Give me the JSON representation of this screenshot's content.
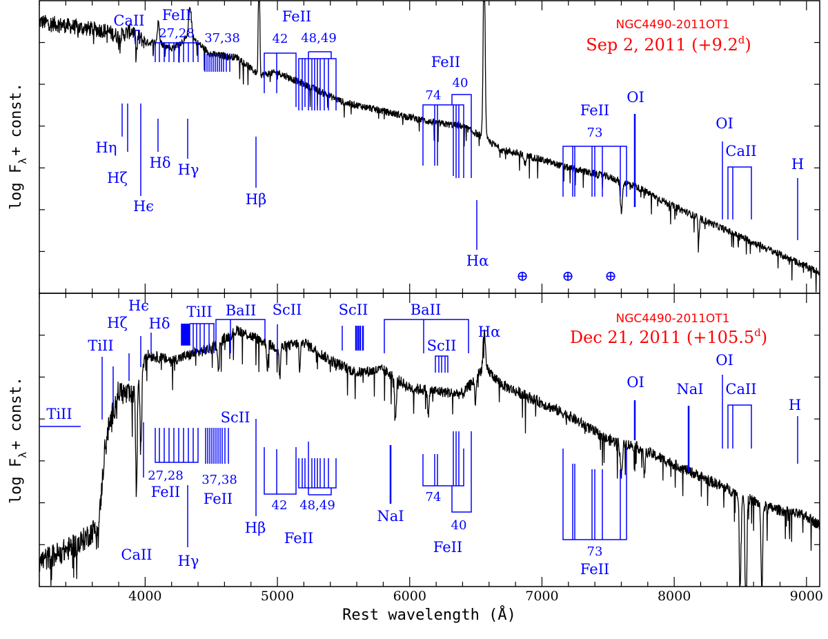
{
  "chart_data": [
    {
      "type": "line",
      "panel": "top",
      "object": "NGC4490-2011OT1",
      "title": "Sep 2, 2011 (+9.2d)",
      "epoch_phase": "+9.2",
      "ylabel": "log Fλ + const.",
      "xlim": [
        3200,
        9100
      ],
      "series": [
        {
          "name": "spectrum",
          "x": [
            3200,
            3500,
            3700,
            3800,
            3900,
            4000,
            4101,
            4200,
            4340,
            4500,
            4700,
            4861,
            5000,
            5200,
            5500,
            5800,
            6000,
            6200,
            6400,
            6563,
            6700,
            6900,
            7200,
            7500,
            7700,
            8000,
            8300,
            8500,
            8700,
            9000,
            9100
          ],
          "y": [
            2.65,
            2.55,
            2.5,
            2.4,
            2.5,
            2.3,
            2.3,
            2.2,
            2.4,
            2.1,
            2.05,
            1.75,
            1.8,
            1.6,
            1.3,
            1.15,
            1.05,
            0.95,
            0.9,
            0.7,
            0.5,
            0.4,
            0.2,
            0.05,
            -0.1,
            -0.45,
            -0.75,
            -0.95,
            -1.15,
            -1.45,
            -1.55
          ]
        }
      ],
      "emission_lines": [
        {
          "name": "Hβ",
          "wavelength": 4861,
          "peak": 3.9
        },
        {
          "name": "Hα",
          "wavelength": 6563,
          "peak": 3.7
        },
        {
          "name": "Hδ",
          "wavelength": 4101,
          "peak": 2.1
        },
        {
          "name": "Hγ",
          "wavelength": 4340,
          "peak": 2.3
        }
      ],
      "labels": [
        "CaII",
        "FeII",
        "27,28",
        "37,38",
        "42",
        "48,49",
        "74",
        "40",
        "73",
        "OI",
        "Hη",
        "Hζ",
        "Hε",
        "Hδ",
        "Hγ",
        "Hβ",
        "Hα",
        "H"
      ],
      "telluric_symbol": "⊕"
    },
    {
      "type": "line",
      "panel": "bottom",
      "object": "NGC4490-2011OT1",
      "title": "Dec 21, 2011 (+105.5d)",
      "epoch_phase": "+105.5",
      "ylabel": "log Fλ + const.",
      "xlabel": "Rest wavelength (Å)",
      "xlim": [
        3200,
        9100
      ],
      "xticks": [
        4000,
        5000,
        6000,
        7000,
        8000,
        9000
      ],
      "series": [
        {
          "name": "spectrum",
          "x": [
            3200,
            3500,
            3650,
            3700,
            3800,
            3900,
            4000,
            4200,
            4500,
            4700,
            4900,
            5000,
            5200,
            5400,
            5600,
            5800,
            6000,
            6200,
            6400,
            6563,
            6700,
            6900,
            7200,
            7500,
            7700,
            8000,
            8300,
            8500,
            8700,
            9000,
            9100
          ],
          "y": [
            -2.2,
            -1.9,
            -1.6,
            -0.2,
            0.6,
            0.5,
            1.2,
            1.1,
            1.3,
            1.6,
            1.4,
            1.3,
            1.4,
            1.1,
            0.9,
            0.95,
            0.65,
            0.6,
            0.55,
            1.0,
            0.7,
            0.5,
            0.2,
            -0.2,
            -0.3,
            -0.6,
            -0.9,
            -1.1,
            -1.3,
            -1.45,
            -1.6
          ]
        }
      ],
      "absorption_lines": [
        {
          "name": "CaII H&K",
          "wavelength": 3934,
          "depth": -2.0
        },
        {
          "name": "NaI",
          "wavelength": 5893,
          "depth": -0.4
        },
        {
          "name": "CaII triplet",
          "wavelength": 8542,
          "depth": -3.5
        },
        {
          "name": "CaII triplet",
          "wavelength": 8498,
          "depth": -3.4
        }
      ],
      "labels": [
        "TiII",
        "Hζ",
        "Hε",
        "Hδ",
        "TiII",
        "BaII",
        "ScII",
        "ScII",
        "BaII",
        "ScII",
        "Hα",
        "OI",
        "NaI",
        "OI",
        "CaII",
        "H",
        "27,28",
        "FeII",
        "37,38",
        "FeII",
        "ScII",
        "Hβ",
        "42",
        "48,49",
        "FeII",
        "NaI",
        "74",
        "40",
        "FeII",
        "73",
        "FeII",
        "CaII",
        "Hγ"
      ]
    }
  ],
  "xlabel": "Rest wavelength (Å)",
  "xtick_labels": [
    "4000",
    "5000",
    "6000",
    "7000",
    "8000",
    "9000"
  ],
  "top_object": "NGC4490-2011OT1",
  "top_date": "Sep 2, 2011 (+9.2",
  "bottom_object": "NGC4490-2011OT1",
  "bottom_date": "Dec 21, 2011 (+105.5",
  "date_sup": "d",
  "date_close": ")",
  "ylabel_main": "log F",
  "ylabel_sub": "λ",
  "ylabel_tail": "+ const.",
  "colors": {
    "annot": "#0000ff",
    "title": "#ff0000",
    "spectrum": "#000000"
  },
  "top_labels": {
    "caii": "CaII",
    "feii1": "FeII",
    "m2728": "27,28",
    "m3738": "37,38",
    "feii2": "FeII",
    "m42": "42",
    "m4849": "48,49",
    "feii3": "FeII",
    "m74": "74",
    "m40": "40",
    "feii4": "FeII",
    "m73": "73",
    "oi1": "OI",
    "oi2": "OI",
    "caii2": "CaII",
    "h_eta": "Hη",
    "h_zeta": "Hζ",
    "h_eps": "Hϵ",
    "h_delta": "Hδ",
    "h_gamma": "Hγ",
    "h_beta": "Hβ",
    "h_alpha": "Hα",
    "h": "H",
    "tell": "⊕"
  },
  "bottom_labels": {
    "tiii1": "TiII",
    "h_zeta": "Hζ",
    "h_eps": "Hϵ",
    "h_delta": "Hδ",
    "tiii2": "TiII",
    "baii1": "BaII",
    "scii1": "ScII",
    "scii2": "ScII",
    "baii2": "BaII",
    "scii3": "ScII",
    "h_alpha": "Hα",
    "oi1": "OI",
    "nai1": "NaI",
    "oi2": "OI",
    "caii1": "CaII",
    "h": "H",
    "tiii3": "TiII",
    "m2728": "27,28",
    "feii1": "FeII",
    "m3738": "37,38",
    "feii2": "FeII",
    "scii4": "ScII",
    "h_beta": "Hβ",
    "m42": "42",
    "m4849": "48,49",
    "feii3": "FeII",
    "nai2": "NaI",
    "m74": "74",
    "m40": "40",
    "feii4": "FeII",
    "m73": "73",
    "feii5": "FeII",
    "caii2": "CaII",
    "h_gamma": "Hγ"
  }
}
